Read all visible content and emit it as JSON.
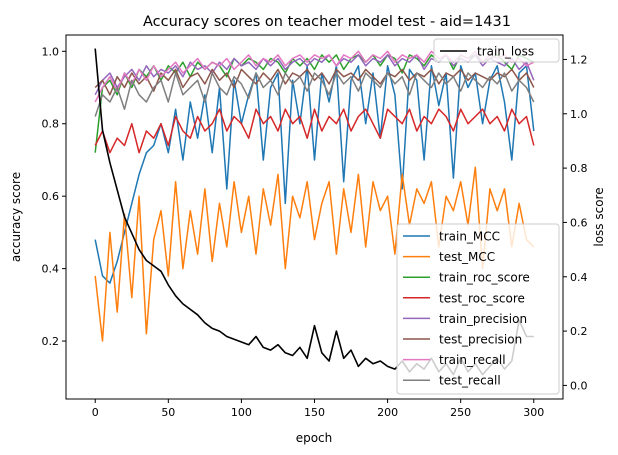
{
  "chart_data": {
    "type": "line",
    "title": "Accuracy scores on teacher model test - aid=1431",
    "xlabel": "epoch",
    "ylabel": "accuracy score",
    "y2label": "loss score",
    "xlim": [
      -20,
      320
    ],
    "ylim": [
      0.04,
      1.045
    ],
    "y2lim": [
      -0.05,
      1.29
    ],
    "xticks": [
      0,
      50,
      100,
      150,
      200,
      250,
      300
    ],
    "yticks": [
      0.2,
      0.4,
      0.6,
      0.8,
      1.0
    ],
    "y2ticks": [
      0.0,
      0.2,
      0.4,
      0.6,
      0.8,
      1.0,
      1.2
    ],
    "ytick_labels": [
      "0.2",
      "0.4",
      "0.6",
      "0.8",
      "1.0"
    ],
    "y2tick_labels": [
      "0.0",
      "0.2",
      "0.4",
      "0.6",
      "0.8",
      "1.0",
      "1.2"
    ],
    "grid": false,
    "legend_primary": "lower-right",
    "legend_secondary": "upper-right",
    "x_step": 5,
    "series": [
      {
        "name": "train_MCC",
        "color": "#1f77b4",
        "axis": "left",
        "values": [
          0.48,
          0.38,
          0.36,
          0.42,
          0.5,
          0.58,
          0.66,
          0.72,
          0.74,
          0.8,
          0.72,
          0.84,
          0.7,
          0.86,
          0.76,
          0.88,
          0.72,
          0.9,
          0.62,
          0.92,
          0.8,
          0.88,
          0.94,
          0.7,
          0.9,
          0.94,
          0.58,
          0.92,
          0.8,
          0.96,
          0.7,
          0.94,
          0.86,
          0.96,
          0.64,
          0.92,
          0.96,
          0.8,
          0.94,
          0.76,
          0.96,
          0.88,
          0.62,
          0.95,
          0.92,
          0.7,
          0.96,
          0.85,
          0.94,
          0.65,
          0.96,
          0.9,
          0.94,
          0.8,
          0.92,
          0.96,
          0.86,
          0.7,
          0.94,
          0.96,
          0.78
        ]
      },
      {
        "name": "test_MCC",
        "color": "#ff7f0e",
        "axis": "left",
        "values": [
          0.38,
          0.2,
          0.5,
          0.28,
          0.55,
          0.32,
          0.6,
          0.22,
          0.48,
          0.56,
          0.38,
          0.64,
          0.4,
          0.56,
          0.44,
          0.62,
          0.42,
          0.58,
          0.46,
          0.64,
          0.5,
          0.6,
          0.44,
          0.62,
          0.52,
          0.66,
          0.4,
          0.6,
          0.54,
          0.64,
          0.48,
          0.58,
          0.64,
          0.44,
          0.62,
          0.5,
          0.66,
          0.46,
          0.64,
          0.56,
          0.6,
          0.44,
          0.66,
          0.52,
          0.62,
          0.58,
          0.64,
          0.46,
          0.6,
          0.56,
          0.64,
          0.52,
          0.68,
          0.4,
          0.62,
          0.56,
          0.62,
          0.46,
          0.58,
          0.48,
          0.46
        ]
      },
      {
        "name": "train_roc_score",
        "color": "#2ca02c",
        "axis": "left",
        "values": [
          0.72,
          0.9,
          0.92,
          0.88,
          0.94,
          0.9,
          0.95,
          0.93,
          0.96,
          0.92,
          0.96,
          0.94,
          0.97,
          0.93,
          0.97,
          0.95,
          0.97,
          0.96,
          0.93,
          0.98,
          0.96,
          0.98,
          0.97,
          0.95,
          0.98,
          0.97,
          0.94,
          0.98,
          0.96,
          0.98,
          0.95,
          0.99,
          0.97,
          0.99,
          0.95,
          0.98,
          0.99,
          0.97,
          0.99,
          0.96,
          0.99,
          0.98,
          0.94,
          0.99,
          0.98,
          0.96,
          0.99,
          0.97,
          0.99,
          0.95,
          0.99,
          0.98,
          0.99,
          0.97,
          0.98,
          0.99,
          0.97,
          0.95,
          0.99,
          0.98,
          0.97
        ]
      },
      {
        "name": "test_roc_score",
        "color": "#d62728",
        "axis": "left",
        "values": [
          0.74,
          0.78,
          0.72,
          0.76,
          0.74,
          0.8,
          0.72,
          0.78,
          0.76,
          0.8,
          0.74,
          0.82,
          0.78,
          0.76,
          0.82,
          0.78,
          0.8,
          0.84,
          0.78,
          0.82,
          0.8,
          0.76,
          0.84,
          0.8,
          0.82,
          0.78,
          0.84,
          0.8,
          0.82,
          0.76,
          0.84,
          0.78,
          0.82,
          0.8,
          0.84,
          0.78,
          0.82,
          0.84,
          0.8,
          0.76,
          0.84,
          0.82,
          0.8,
          0.84,
          0.78,
          0.82,
          0.8,
          0.84,
          0.82,
          0.78,
          0.84,
          0.8,
          0.82,
          0.84,
          0.8,
          0.82,
          0.78,
          0.84,
          0.8,
          0.82,
          0.74
        ]
      },
      {
        "name": "train_precision",
        "color": "#9467bd",
        "axis": "left",
        "values": [
          0.88,
          0.92,
          0.94,
          0.9,
          0.93,
          0.95,
          0.92,
          0.96,
          0.93,
          0.95,
          0.94,
          0.96,
          0.93,
          0.97,
          0.95,
          0.96,
          0.94,
          0.97,
          0.95,
          0.98,
          0.96,
          0.97,
          0.95,
          0.98,
          0.96,
          0.98,
          0.95,
          0.97,
          0.98,
          0.96,
          0.98,
          0.97,
          0.99,
          0.96,
          0.98,
          0.97,
          0.99,
          0.96,
          0.98,
          0.97,
          0.99,
          0.96,
          0.98,
          0.97,
          0.99,
          0.95,
          0.98,
          0.97,
          0.99,
          0.96,
          0.98,
          0.97,
          0.99,
          0.96,
          0.98,
          0.97,
          0.96,
          0.98,
          0.95,
          0.97,
          0.92
        ]
      },
      {
        "name": "test_precision",
        "color": "#8c564b",
        "axis": "left",
        "values": [
          0.9,
          0.92,
          0.88,
          0.93,
          0.9,
          0.94,
          0.91,
          0.93,
          0.89,
          0.94,
          0.92,
          0.95,
          0.9,
          0.93,
          0.94,
          0.91,
          0.95,
          0.92,
          0.94,
          0.9,
          0.95,
          0.93,
          0.91,
          0.94,
          0.92,
          0.95,
          0.91,
          0.94,
          0.93,
          0.95,
          0.92,
          0.94,
          0.91,
          0.95,
          0.93,
          0.94,
          0.92,
          0.95,
          0.93,
          0.91,
          0.94,
          0.93,
          0.95,
          0.92,
          0.94,
          0.93,
          0.95,
          0.91,
          0.94,
          0.93,
          0.95,
          0.92,
          0.94,
          0.93,
          0.92,
          0.94,
          0.93,
          0.95,
          0.92,
          0.94,
          0.9
        ]
      },
      {
        "name": "train_recall",
        "color": "#e377c2",
        "axis": "left",
        "values": [
          0.86,
          0.9,
          0.93,
          0.89,
          0.94,
          0.91,
          0.95,
          0.92,
          0.96,
          0.93,
          0.95,
          0.97,
          0.94,
          0.96,
          0.98,
          0.95,
          0.97,
          0.96,
          0.98,
          0.95,
          0.97,
          0.99,
          0.96,
          0.98,
          0.97,
          0.99,
          0.96,
          0.98,
          0.99,
          0.97,
          0.99,
          0.98,
          0.99,
          0.96,
          0.99,
          0.98,
          1.0,
          0.97,
          0.99,
          0.98,
          1.0,
          0.97,
          0.99,
          0.98,
          0.99,
          0.97,
          1.0,
          0.98,
          0.99,
          0.97,
          0.99,
          0.98,
          1.0,
          0.97,
          0.99,
          0.98,
          0.99,
          0.97,
          0.98,
          0.96,
          0.97
        ]
      },
      {
        "name": "test_recall",
        "color": "#7f7f7f",
        "axis": "left",
        "values": [
          0.82,
          0.88,
          0.86,
          0.9,
          0.84,
          0.92,
          0.88,
          0.86,
          0.9,
          0.92,
          0.86,
          0.94,
          0.88,
          0.9,
          0.92,
          0.86,
          0.94,
          0.9,
          0.88,
          0.93,
          0.91,
          0.87,
          0.94,
          0.9,
          0.92,
          0.88,
          0.94,
          0.91,
          0.93,
          0.89,
          0.94,
          0.92,
          0.88,
          0.94,
          0.91,
          0.93,
          0.89,
          0.94,
          0.92,
          0.9,
          0.94,
          0.91,
          0.93,
          0.88,
          0.94,
          0.92,
          0.9,
          0.94,
          0.91,
          0.93,
          0.89,
          0.94,
          0.92,
          0.9,
          0.93,
          0.91,
          0.94,
          0.89,
          0.92,
          0.9,
          0.86
        ]
      },
      {
        "name": "train_loss",
        "color": "#000000",
        "axis": "right",
        "values": [
          1.24,
          0.94,
          0.82,
          0.72,
          0.62,
          0.56,
          0.5,
          0.46,
          0.44,
          0.42,
          0.37,
          0.33,
          0.3,
          0.28,
          0.26,
          0.23,
          0.21,
          0.2,
          0.18,
          0.17,
          0.16,
          0.15,
          0.18,
          0.14,
          0.13,
          0.15,
          0.12,
          0.11,
          0.14,
          0.1,
          0.22,
          0.12,
          0.09,
          0.2,
          0.1,
          0.13,
          0.07,
          0.1,
          0.08,
          0.09,
          0.07,
          0.06,
          0.09,
          0.05,
          0.08,
          0.06,
          0.1,
          0.05,
          0.08,
          0.04,
          0.1,
          0.05,
          0.08,
          0.04,
          0.07,
          0.1,
          0.06,
          0.09,
          0.24,
          0.18,
          0.18
        ]
      }
    ]
  }
}
